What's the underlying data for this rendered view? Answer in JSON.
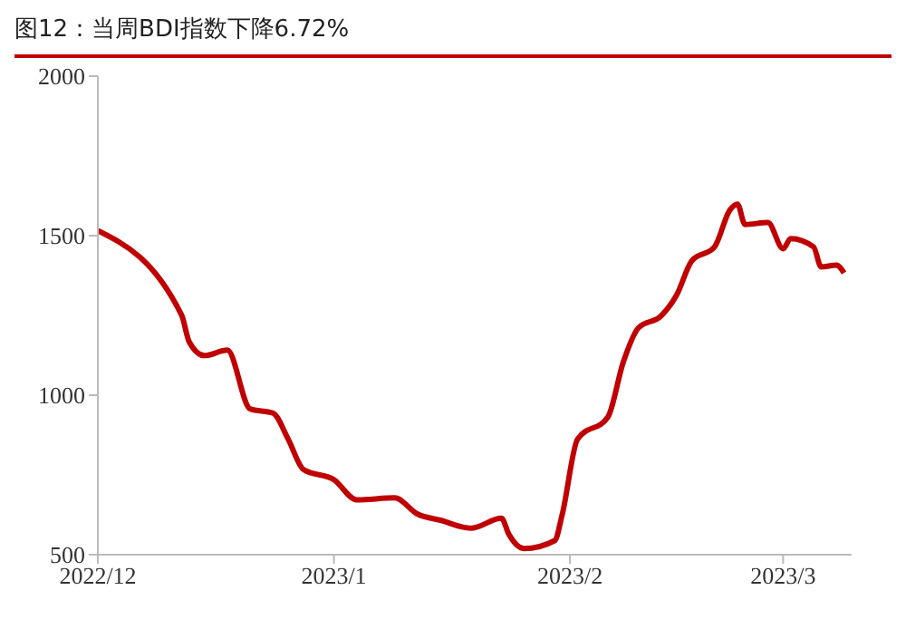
{
  "chart_data": {
    "type": "line",
    "title": "图12：当周BDI指数下降6.72%",
    "x": [
      "2022-12-01",
      "2022-12-12",
      "2022-12-13",
      "2022-12-15",
      "2022-12-18",
      "2022-12-21",
      "2022-12-24",
      "2022-12-26",
      "2022-12-28",
      "2023-01-01",
      "2023-01-04",
      "2023-01-09",
      "2023-01-12",
      "2023-01-15",
      "2023-01-19",
      "2023-01-23",
      "2023-01-24",
      "2023-01-26",
      "2023-01-30",
      "2023-01-31",
      "2023-02-02",
      "2023-02-06",
      "2023-02-08",
      "2023-02-10",
      "2023-02-13",
      "2023-02-15",
      "2023-02-17",
      "2023-02-20",
      "2023-02-22",
      "2023-02-23",
      "2023-02-24",
      "2023-02-27",
      "2023-03-01",
      "2023-03-02",
      "2023-03-05",
      "2023-03-06",
      "2023-03-08",
      "2023-03-09"
    ],
    "series": [
      {
        "color": "#c00000",
        "values": [
          1516,
          1251,
          1167,
          1124,
          1141,
          957,
          944,
          862,
          767,
          735,
          672,
          678,
          627,
          608,
          583,
          614,
          563,
          519,
          544,
          627,
          862,
          932,
          1103,
          1211,
          1249,
          1313,
          1421,
          1465,
          1580,
          1599,
          1535,
          1541,
          1459,
          1491,
          1465,
          1402,
          1408,
          1383
        ]
      }
    ],
    "xlim": [
      "2022-12-01",
      "2023-03-10"
    ],
    "xticks": [
      {
        "value": "2022-12-01",
        "label": "2022/12"
      },
      {
        "value": "2023-01-01",
        "label": "2023/1"
      },
      {
        "value": "2023-02-01",
        "label": "2023/2"
      },
      {
        "value": "2023-03-01",
        "label": "2023/3"
      }
    ],
    "ylim": [
      500,
      2000
    ],
    "yticks": [
      500,
      1000,
      1500,
      2000
    ],
    "grid": false,
    "legend": false,
    "marker": "none",
    "line_style": "solid"
  }
}
